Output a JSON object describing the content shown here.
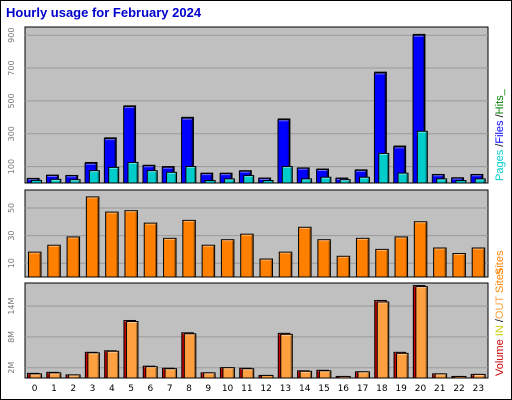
{
  "chart_data": {
    "title": "Hourly usage for February 2024",
    "type": "bar",
    "categories": [
      "0",
      "1",
      "2",
      "3",
      "4",
      "5",
      "6",
      "7",
      "8",
      "9",
      "10",
      "11",
      "12",
      "13",
      "14",
      "15",
      "16",
      "17",
      "18",
      "19",
      "20",
      "21",
      "22",
      "23"
    ],
    "panels": [
      {
        "id": "pages-files-hits",
        "ylim": [
          0,
          950
        ],
        "ticks": [
          100,
          300,
          500,
          700,
          900
        ],
        "legend": [
          {
            "text": "Pages",
            "color": "#00cccc"
          },
          {
            "text": " /",
            "color": "#000000"
          },
          {
            "text": "Files",
            "color": "#0000ff"
          },
          {
            "text": " /",
            "color": "#000000"
          },
          {
            "text": "Hits_",
            "color": "#008000"
          }
        ],
        "series": [
          {
            "name": "Hits",
            "color": "#008000",
            "values": [
              28,
              48,
              46,
              125,
              275,
              470,
              108,
              100,
              400,
              60,
              60,
              75,
              30,
              390,
              92,
              85,
              30,
              80,
              675,
              225,
              905,
              52,
              32,
              52
            ]
          },
          {
            "name": "Files",
            "color": "#0000ff",
            "values": [
              26,
              46,
              44,
              120,
              270,
              465,
              105,
              96,
              395,
              57,
              57,
              72,
              28,
              385,
              90,
              82,
              28,
              77,
              670,
              220,
              900,
              50,
              30,
              50
            ]
          },
          {
            "name": "Pages",
            "color": "#00cccc",
            "values": [
              16,
              22,
              20,
              75,
              95,
              125,
              75,
              65,
              100,
              15,
              25,
              45,
              15,
              100,
              25,
              35,
              20,
              35,
              180,
              60,
              315,
              25,
              15,
              25
            ]
          }
        ]
      },
      {
        "id": "sites",
        "ylim": [
          0,
          63
        ],
        "ticks": [
          10,
          30,
          50
        ],
        "legend": [
          {
            "text": "Sites",
            "color": "#ff8000"
          }
        ],
        "series": [
          {
            "name": "Sites",
            "color": "#ff8000",
            "values": [
              18,
              23,
              29,
              58,
              47,
              48,
              39,
              28,
              41,
              23,
              27,
              31,
              13,
              18,
              36,
              27,
              15,
              28,
              20,
              29,
              40,
              21,
              17,
              21
            ]
          }
        ]
      },
      {
        "id": "volume",
        "ylim": [
          0,
          18.5
        ],
        "ticks": [
          2,
          8,
          14
        ],
        "tick_suffix": "M",
        "legend": [
          {
            "text": "Volume",
            "color": "#cc0000"
          },
          {
            "text": " ",
            "color": "#000000"
          },
          {
            "text": "IN",
            "color": "#cccc00"
          },
          {
            "text": " /",
            "color": "#000000"
          },
          {
            "text": "OUT",
            "color": "#ffa040"
          },
          {
            "text": " ",
            "color": "#000000"
          },
          {
            "text": "Sites",
            "color": "#ff8000"
          }
        ],
        "series": [
          {
            "name": "Volume",
            "color": "#cc0000",
            "values": [
              0.9,
              1.1,
              0.6,
              5.0,
              5.3,
              11.2,
              2.3,
              1.9,
              8.8,
              1.0,
              2.0,
              1.9,
              0.5,
              8.7,
              1.4,
              1.5,
              0.3,
              1.2,
              15.1,
              5.0,
              18.0,
              0.8,
              0.3,
              0.7
            ]
          },
          {
            "name": "OUT",
            "color": "#ffa040",
            "values": [
              0.8,
              1.0,
              0.6,
              4.9,
              5.2,
              11.0,
              2.2,
              1.8,
              8.6,
              1.0,
              2.0,
              1.8,
              0.5,
              8.5,
              1.3,
              1.4,
              0.3,
              1.2,
              14.8,
              4.8,
              17.8,
              0.8,
              0.3,
              0.7
            ]
          }
        ]
      }
    ]
  }
}
